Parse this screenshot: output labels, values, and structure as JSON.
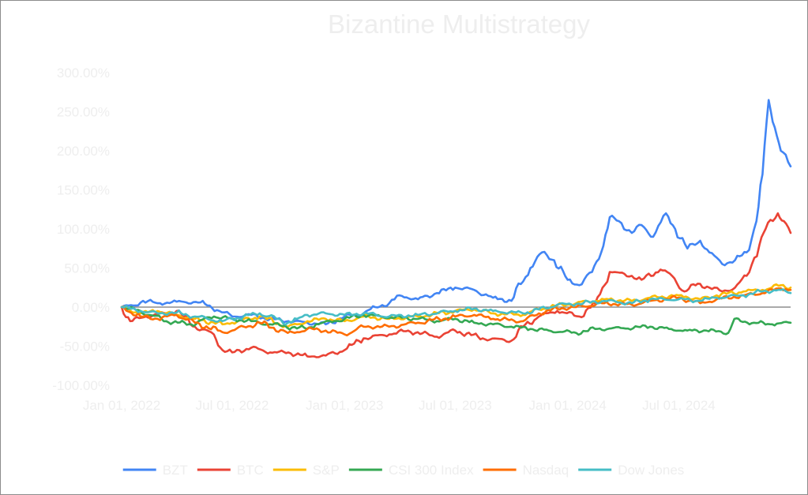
{
  "chart_data": {
    "type": "line",
    "title": "Bizantine Multistrategy",
    "xlabel": "",
    "ylabel": "",
    "x_range": [
      "2022-01-01",
      "2024-12-31"
    ],
    "x_ticks": [
      "2022-01-01",
      "2022-07-01",
      "2023-01-01",
      "2023-07-01",
      "2024-01-01",
      "2024-07-01"
    ],
    "x_tick_labels": [
      "Jan 01, 2022",
      "Jul 01, 2022",
      "Jan 01, 2023",
      "Jul 01, 2023",
      "Jan 01, 2024",
      "Jul 01, 2024"
    ],
    "ylim": [
      -100,
      300
    ],
    "y_unit": "%",
    "y_ticks": [
      300,
      250,
      200,
      150,
      100,
      50,
      0,
      -50,
      -100
    ],
    "y_tick_labels": [
      "300.00%",
      "250.00%",
      "200.00%",
      "150.00%",
      "100.00%",
      "50.00%",
      "0.00%",
      "-50.00%",
      "-100.00%"
    ],
    "zero_line": true,
    "grid": false,
    "legend_position": "bottom",
    "series": [
      {
        "name": "BZT",
        "color": "#4285f4",
        "points": [
          [
            "2022-01-01",
            0
          ],
          [
            "2022-01-20",
            2
          ],
          [
            "2022-02-05",
            8
          ],
          [
            "2022-03-01",
            5
          ],
          [
            "2022-04-01",
            7
          ],
          [
            "2022-05-10",
            6
          ],
          [
            "2022-05-25",
            2
          ],
          [
            "2022-06-10",
            -5
          ],
          [
            "2022-07-01",
            -12
          ],
          [
            "2022-08-01",
            -10
          ],
          [
            "2022-09-01",
            -15
          ],
          [
            "2022-10-01",
            -18
          ],
          [
            "2022-11-01",
            -20
          ],
          [
            "2022-12-01",
            -22
          ],
          [
            "2023-01-01",
            -12
          ],
          [
            "2023-02-01",
            -8
          ],
          [
            "2023-02-20",
            0
          ],
          [
            "2023-03-15",
            5
          ],
          [
            "2023-04-01",
            15
          ],
          [
            "2023-05-01",
            10
          ],
          [
            "2023-06-01",
            18
          ],
          [
            "2023-07-01",
            25
          ],
          [
            "2023-08-01",
            22
          ],
          [
            "2023-09-01",
            12
          ],
          [
            "2023-10-01",
            8
          ],
          [
            "2023-11-01",
            50
          ],
          [
            "2023-11-20",
            70
          ],
          [
            "2023-12-10",
            60
          ],
          [
            "2024-01-01",
            35
          ],
          [
            "2024-01-20",
            28
          ],
          [
            "2024-02-10",
            45
          ],
          [
            "2024-02-25",
            70
          ],
          [
            "2024-03-10",
            115
          ],
          [
            "2024-03-25",
            110
          ],
          [
            "2024-04-15",
            95
          ],
          [
            "2024-05-01",
            105
          ],
          [
            "2024-05-20",
            90
          ],
          [
            "2024-06-10",
            120
          ],
          [
            "2024-06-25",
            100
          ],
          [
            "2024-07-15",
            75
          ],
          [
            "2024-08-05",
            85
          ],
          [
            "2024-08-20",
            70
          ],
          [
            "2024-09-10",
            55
          ],
          [
            "2024-10-01",
            60
          ],
          [
            "2024-10-20",
            70
          ],
          [
            "2024-11-05",
            110
          ],
          [
            "2024-11-15",
            170
          ],
          [
            "2024-11-25",
            265
          ],
          [
            "2024-12-05",
            230
          ],
          [
            "2024-12-15",
            200
          ],
          [
            "2024-12-31",
            180
          ]
        ]
      },
      {
        "name": "BTC",
        "color": "#ea4335",
        "points": [
          [
            "2022-01-01",
            0
          ],
          [
            "2022-01-15",
            -18
          ],
          [
            "2022-02-10",
            -12
          ],
          [
            "2022-03-15",
            -8
          ],
          [
            "2022-04-01",
            -5
          ],
          [
            "2022-05-01",
            -25
          ],
          [
            "2022-06-01",
            -35
          ],
          [
            "2022-06-15",
            -55
          ],
          [
            "2022-07-01",
            -58
          ],
          [
            "2022-08-01",
            -52
          ],
          [
            "2022-09-01",
            -58
          ],
          [
            "2022-10-01",
            -58
          ],
          [
            "2022-11-01",
            -63
          ],
          [
            "2022-12-01",
            -62
          ],
          [
            "2023-01-01",
            -55
          ],
          [
            "2023-02-01",
            -40
          ],
          [
            "2023-03-15",
            -35
          ],
          [
            "2023-04-15",
            -30
          ],
          [
            "2023-06-01",
            -38
          ],
          [
            "2023-07-01",
            -30
          ],
          [
            "2023-08-15",
            -40
          ],
          [
            "2023-10-01",
            -43
          ],
          [
            "2023-10-20",
            -25
          ],
          [
            "2023-11-15",
            -12
          ],
          [
            "2023-12-15",
            -5
          ],
          [
            "2024-01-20",
            -12
          ],
          [
            "2024-02-15",
            5
          ],
          [
            "2024-03-10",
            45
          ],
          [
            "2024-04-15",
            40
          ],
          [
            "2024-05-01",
            35
          ],
          [
            "2024-06-01",
            48
          ],
          [
            "2024-06-20",
            40
          ],
          [
            "2024-07-10",
            20
          ],
          [
            "2024-08-01",
            30
          ],
          [
            "2024-08-20",
            25
          ],
          [
            "2024-09-10",
            20
          ],
          [
            "2024-10-01",
            25
          ],
          [
            "2024-10-20",
            40
          ],
          [
            "2024-11-10",
            80
          ],
          [
            "2024-11-20",
            100
          ],
          [
            "2024-12-10",
            120
          ],
          [
            "2024-12-20",
            110
          ],
          [
            "2024-12-31",
            95
          ]
        ]
      },
      {
        "name": "S&P",
        "color": "#fbbc04",
        "points": [
          [
            "2022-01-01",
            0
          ],
          [
            "2022-02-01",
            -8
          ],
          [
            "2022-03-01",
            -5
          ],
          [
            "2022-04-01",
            -10
          ],
          [
            "2022-05-01",
            -15
          ],
          [
            "2022-06-15",
            -22
          ],
          [
            "2022-07-01",
            -20
          ],
          [
            "2022-08-15",
            -12
          ],
          [
            "2022-09-30",
            -25
          ],
          [
            "2022-10-15",
            -22
          ],
          [
            "2022-11-01",
            -18
          ],
          [
            "2022-12-01",
            -15
          ],
          [
            "2023-01-01",
            -18
          ],
          [
            "2023-02-01",
            -12
          ],
          [
            "2023-03-15",
            -15
          ],
          [
            "2023-05-01",
            -12
          ],
          [
            "2023-07-01",
            -5
          ],
          [
            "2023-08-01",
            -3
          ],
          [
            "2023-09-01",
            -8
          ],
          [
            "2023-10-20",
            -10
          ],
          [
            "2023-11-15",
            -3
          ],
          [
            "2023-12-15",
            2
          ],
          [
            "2024-01-15",
            5
          ],
          [
            "2024-03-01",
            10
          ],
          [
            "2024-04-15",
            8
          ],
          [
            "2024-05-15",
            12
          ],
          [
            "2024-07-01",
            15
          ],
          [
            "2024-08-05",
            10
          ],
          [
            "2024-09-01",
            15
          ],
          [
            "2024-10-15",
            20
          ],
          [
            "2024-11-15",
            22
          ],
          [
            "2024-12-15",
            28
          ],
          [
            "2024-12-31",
            25
          ]
        ]
      },
      {
        "name": "CSI 300 Index",
        "color": "#34a853",
        "points": [
          [
            "2022-01-01",
            0
          ],
          [
            "2022-02-01",
            -5
          ],
          [
            "2022-03-15",
            -18
          ],
          [
            "2022-04-25",
            -22
          ],
          [
            "2022-06-01",
            -12
          ],
          [
            "2022-07-01",
            -15
          ],
          [
            "2022-08-01",
            -18
          ],
          [
            "2022-09-01",
            -22
          ],
          [
            "2022-10-31",
            -28
          ],
          [
            "2022-11-15",
            -22
          ],
          [
            "2022-12-15",
            -18
          ],
          [
            "2023-01-01",
            -15
          ],
          [
            "2023-02-01",
            -10
          ],
          [
            "2023-03-01",
            -12
          ],
          [
            "2023-05-01",
            -15
          ],
          [
            "2023-06-01",
            -18
          ],
          [
            "2023-07-01",
            -15
          ],
          [
            "2023-08-01",
            -20
          ],
          [
            "2023-09-01",
            -22
          ],
          [
            "2023-10-01",
            -25
          ],
          [
            "2023-11-01",
            -28
          ],
          [
            "2023-12-01",
            -30
          ],
          [
            "2024-01-15",
            -33
          ],
          [
            "2024-02-15",
            -28
          ],
          [
            "2024-04-01",
            -27
          ],
          [
            "2024-05-15",
            -25
          ],
          [
            "2024-06-15",
            -28
          ],
          [
            "2024-07-15",
            -30
          ],
          [
            "2024-08-15",
            -30
          ],
          [
            "2024-09-20",
            -33
          ],
          [
            "2024-09-30",
            -15
          ],
          [
            "2024-10-10",
            -18
          ],
          [
            "2024-11-01",
            -20
          ],
          [
            "2024-12-01",
            -22
          ],
          [
            "2024-12-31",
            -20
          ]
        ]
      },
      {
        "name": "Nasdaq",
        "color": "#ff6d01",
        "points": [
          [
            "2022-01-01",
            0
          ],
          [
            "2022-02-01",
            -12
          ],
          [
            "2022-03-01",
            -15
          ],
          [
            "2022-04-01",
            -10
          ],
          [
            "2022-05-01",
            -20
          ],
          [
            "2022-06-15",
            -32
          ],
          [
            "2022-07-01",
            -30
          ],
          [
            "2022-08-15",
            -20
          ],
          [
            "2022-09-30",
            -33
          ],
          [
            "2022-10-15",
            -32
          ],
          [
            "2022-11-01",
            -28
          ],
          [
            "2022-12-01",
            -30
          ],
          [
            "2023-01-01",
            -35
          ],
          [
            "2023-02-01",
            -25
          ],
          [
            "2023-03-15",
            -25
          ],
          [
            "2023-05-01",
            -20
          ],
          [
            "2023-07-01",
            -12
          ],
          [
            "2023-08-01",
            -10
          ],
          [
            "2023-09-01",
            -15
          ],
          [
            "2023-10-20",
            -18
          ],
          [
            "2023-11-15",
            -8
          ],
          [
            "2023-12-15",
            -2
          ],
          [
            "2024-01-15",
            0
          ],
          [
            "2024-03-01",
            5
          ],
          [
            "2024-04-15",
            3
          ],
          [
            "2024-05-15",
            8
          ],
          [
            "2024-07-01",
            12
          ],
          [
            "2024-08-05",
            5
          ],
          [
            "2024-09-01",
            10
          ],
          [
            "2024-10-15",
            15
          ],
          [
            "2024-11-15",
            18
          ],
          [
            "2024-12-15",
            24
          ],
          [
            "2024-12-31",
            22
          ]
        ]
      },
      {
        "name": "Dow Jones",
        "color": "#46bdc6",
        "points": [
          [
            "2022-01-01",
            0
          ],
          [
            "2022-02-01",
            -5
          ],
          [
            "2022-03-01",
            -8
          ],
          [
            "2022-04-01",
            -7
          ],
          [
            "2022-05-01",
            -12
          ],
          [
            "2022-06-15",
            -18
          ],
          [
            "2022-07-01",
            -15
          ],
          [
            "2022-08-15",
            -8
          ],
          [
            "2022-09-30",
            -20
          ],
          [
            "2022-10-15",
            -15
          ],
          [
            "2022-11-01",
            -10
          ],
          [
            "2022-12-01",
            -8
          ],
          [
            "2023-01-01",
            -10
          ],
          [
            "2023-02-01",
            -8
          ],
          [
            "2023-03-15",
            -12
          ],
          [
            "2023-05-01",
            -10
          ],
          [
            "2023-07-01",
            -5
          ],
          [
            "2023-08-01",
            -2
          ],
          [
            "2023-09-01",
            -5
          ],
          [
            "2023-10-20",
            -8
          ],
          [
            "2023-11-15",
            -3
          ],
          [
            "2023-12-15",
            3
          ],
          [
            "2024-01-15",
            4
          ],
          [
            "2024-03-01",
            8
          ],
          [
            "2024-04-15",
            5
          ],
          [
            "2024-05-15",
            10
          ],
          [
            "2024-07-01",
            10
          ],
          [
            "2024-08-05",
            8
          ],
          [
            "2024-09-01",
            12
          ],
          [
            "2024-10-15",
            15
          ],
          [
            "2024-11-15",
            20
          ],
          [
            "2024-12-15",
            22
          ],
          [
            "2024-12-31",
            18
          ]
        ]
      }
    ]
  }
}
